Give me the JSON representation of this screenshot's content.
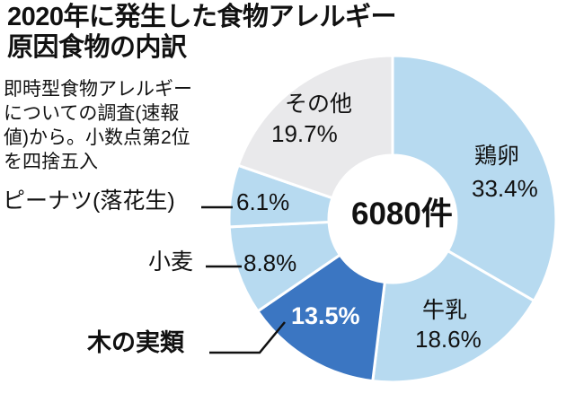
{
  "title": {
    "line1": "2020年に発生した食物アレルギー",
    "line2": "原因食物の内訳"
  },
  "note": {
    "lines": [
      "即時型食物アレルギー",
      "についての調査(速報",
      "値)から。小数点第2位",
      "を四捨五入"
    ]
  },
  "chart_data": {
    "type": "pie",
    "subtype": "donut",
    "title": "2020年に発生した食物アレルギー原因食物の内訳",
    "center_label": "6080件",
    "total_cases": 6080,
    "unit": "%",
    "start_angle_deg": 0,
    "direction": "clockwise",
    "inner_radius_ratio": 0.39,
    "categories": [
      "鶏卵",
      "牛乳",
      "木の実類",
      "小麦",
      "ピーナツ(落花生)",
      "その他"
    ],
    "values": [
      33.4,
      18.6,
      13.5,
      8.8,
      6.1,
      19.7
    ],
    "colors": {
      "light_blue": "#b7daf0",
      "dark_blue": "#3b76c2",
      "gray": "#e9e9eb",
      "divider": "#ffffff",
      "text": "#111111",
      "text_on_dark": "#ffffff"
    },
    "segments": [
      {
        "label": "鶏卵",
        "pct": 33.4,
        "pct_text": "33.4%",
        "color": "#b7daf0"
      },
      {
        "label": "牛乳",
        "pct": 18.6,
        "pct_text": "18.6%",
        "color": "#b7daf0"
      },
      {
        "label": "木の実類",
        "pct": 13.5,
        "pct_text": "13.5%",
        "color": "#3b76c2"
      },
      {
        "label": "小麦",
        "pct": 8.8,
        "pct_text": "8.8%",
        "color": "#b7daf0"
      },
      {
        "label": "ピーナツ(落花生)",
        "pct": 6.1,
        "pct_text": "6.1%",
        "color": "#b7daf0"
      },
      {
        "label": "その他",
        "pct": 19.7,
        "pct_text": "19.7%",
        "color": "#e9e9eb"
      }
    ]
  }
}
